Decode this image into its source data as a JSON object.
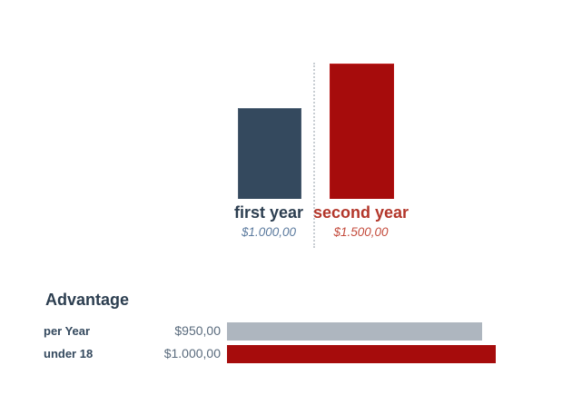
{
  "colors": {
    "navy_bar": "#34495e",
    "red_bar": "#a60c0c",
    "gray_bar": "#aeb6bf",
    "category_label_navy": "#2c3e50",
    "category_value_blue": "#5b7a9e",
    "category_label_red": "#b3362a",
    "category_value_red": "#c44b3c",
    "advantage_heading": "#2c3e50",
    "advantage_label": "#34495e",
    "advantage_value": "#5a6b7d",
    "divider_dotted": "#c9ced3",
    "background": "#ffffff"
  },
  "chart_data": [
    {
      "type": "bar",
      "orientation": "vertical",
      "title": "",
      "categories": [
        "first year",
        "second year"
      ],
      "values": [
        1000,
        1500
      ],
      "value_labels": [
        "$1.000,00",
        "$1.500,00"
      ],
      "colors": [
        "#34495e",
        "#a60c0c"
      ],
      "ylim": [
        0,
        1500
      ],
      "grid": false,
      "legend": "none",
      "annotations": [
        "dotted vertical divider line between the two bars"
      ]
    },
    {
      "type": "bar",
      "orientation": "horizontal",
      "title": "Advantage",
      "categories": [
        "per Year",
        "under 18"
      ],
      "values": [
        950,
        1000
      ],
      "value_labels": [
        "$950,00",
        "$1.000,00"
      ],
      "colors": [
        "#aeb6bf",
        "#a60c0c"
      ],
      "xlim": [
        0,
        1000
      ],
      "grid": false,
      "legend": "none"
    }
  ]
}
